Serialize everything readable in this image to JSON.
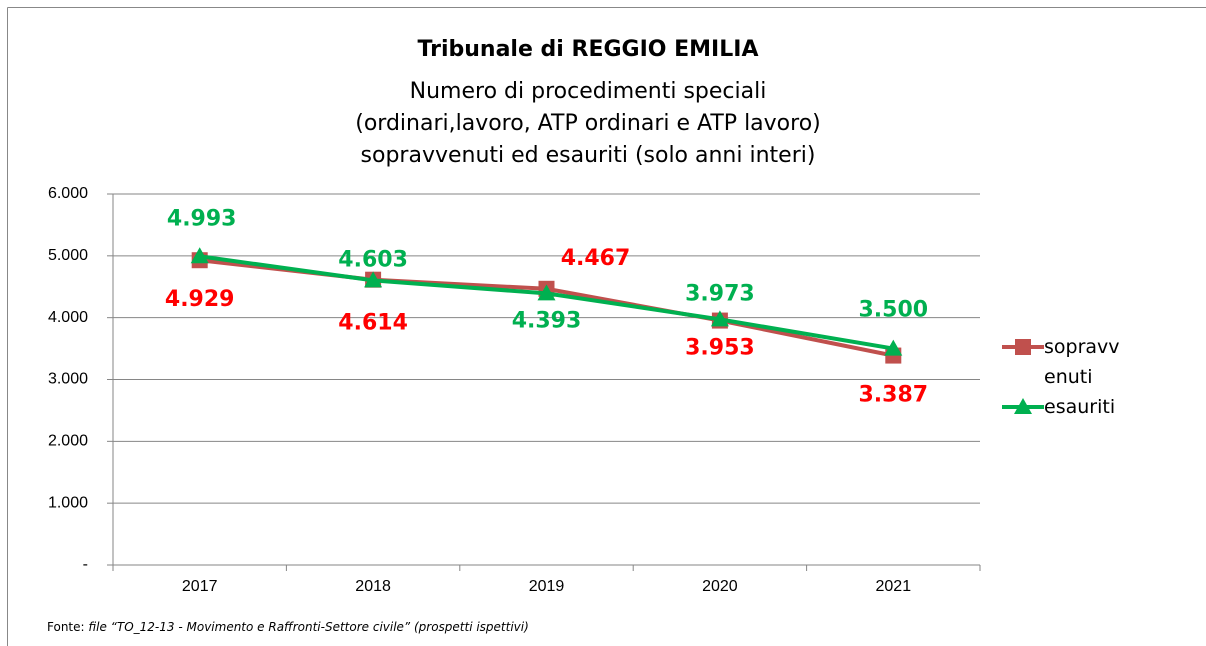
{
  "chart_data": {
    "type": "line",
    "title": "Tribunale di REGGIO EMILIA",
    "subtitle": [
      "Numero di procedimenti speciali",
      "(ordinari,lavoro, ATP ordinari e ATP lavoro)",
      "sopravvenuti ed esauriti (solo anni interi)"
    ],
    "categories": [
      "2017",
      "2018",
      "2019",
      "2020",
      "2021"
    ],
    "series": [
      {
        "name": "sopravvenuti",
        "color": "#c0504d",
        "label_color": "#ff0000",
        "marker": "square",
        "values": [
          4929,
          4614,
          4467,
          3953,
          3387
        ],
        "value_labels": [
          "4.929",
          "4.614",
          "4.467",
          "3.953",
          "3.387"
        ]
      },
      {
        "name": "esauriti",
        "color": "#00b050",
        "label_color": "#00b050",
        "marker": "triangle",
        "values": [
          4993,
          4603,
          4393,
          3973,
          3500
        ],
        "value_labels": [
          "4.993",
          "4.603",
          "4.393",
          "3.973",
          "3.500"
        ]
      }
    ],
    "ylim": [
      0,
      6000
    ],
    "yticks": [
      {
        "value": 0,
        "label": "-"
      },
      {
        "value": 1000,
        "label": "1.000"
      },
      {
        "value": 2000,
        "label": "2.000"
      },
      {
        "value": 3000,
        "label": "3.000"
      },
      {
        "value": 4000,
        "label": "4.000"
      },
      {
        "value": 5000,
        "label": "5.000"
      },
      {
        "value": 6000,
        "label": "6.000"
      }
    ],
    "grid": true,
    "legend": "right",
    "source_label": "Fonte:",
    "source": "file “TO_12-13 - Movimento e Raffronti-Settore civile” (prospetti ispettivi)"
  }
}
